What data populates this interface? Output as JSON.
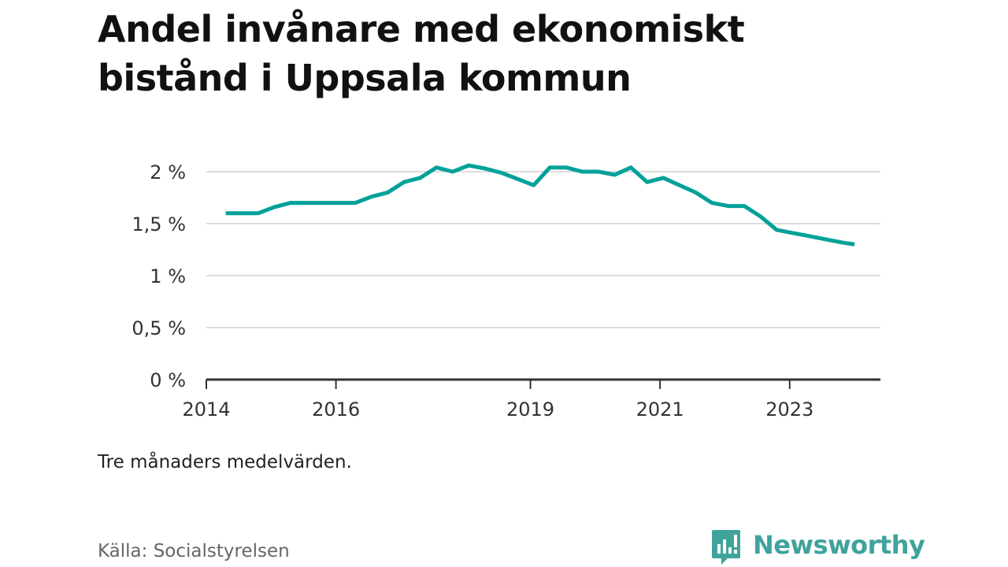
{
  "title": "Andel invånare med ekonomiskt bistånd i Uppsala kommun",
  "note": "Tre månaders medelvärden.",
  "source": "Källa: Socialstyrelsen",
  "brand": {
    "name": "Newsworthy",
    "color": "#3fa39c",
    "icon": "newsworthy-logo-icon"
  },
  "chart_data": {
    "type": "line",
    "title": "Andel invånare med ekonomiskt bistånd i Uppsala kommun",
    "xlabel": "",
    "ylabel": "",
    "color": "#00a199",
    "grid": true,
    "xlim": [
      2014.0,
      2024.4
    ],
    "ylim": [
      0,
      2
    ],
    "xticks": [
      {
        "value": 2014,
        "label": "2014"
      },
      {
        "value": 2016,
        "label": "2016"
      },
      {
        "value": 2019,
        "label": "2019"
      },
      {
        "value": 2021,
        "label": "2021"
      },
      {
        "value": 2023,
        "label": "2023"
      }
    ],
    "yticks": [
      {
        "value": 0,
        "label": "0 %"
      },
      {
        "value": 0.5,
        "label": "0,5 %"
      },
      {
        "value": 1,
        "label": "1 %"
      },
      {
        "value": 1.5,
        "label": "1,5 %"
      },
      {
        "value": 2,
        "label": "2 %"
      }
    ],
    "series": [
      {
        "x": [
          2014.3,
          2014.55,
          2014.8,
          2015.05,
          2015.3,
          2015.55,
          2015.8,
          2016.05,
          2016.3,
          2016.55,
          2016.8,
          2017.05,
          2017.3,
          2017.55,
          2017.8,
          2018.05,
          2018.3,
          2018.55,
          2018.8,
          2019.05,
          2019.3,
          2019.55,
          2019.8,
          2020.05,
          2020.3,
          2020.55,
          2020.8,
          2021.05,
          2021.3,
          2021.55,
          2021.8,
          2022.05,
          2022.3,
          2022.55,
          2022.8,
          2023.05,
          2023.3,
          2023.55,
          2023.8,
          2024.0
        ],
        "values": [
          1.6,
          1.6,
          1.6,
          1.66,
          1.7,
          1.7,
          1.7,
          1.7,
          1.7,
          1.76,
          1.8,
          1.9,
          1.94,
          2.04,
          2.0,
          2.06,
          2.03,
          1.99,
          1.93,
          1.87,
          2.04,
          2.04,
          2.0,
          2.0,
          1.97,
          2.04,
          1.9,
          1.94,
          1.87,
          1.8,
          1.7,
          1.67,
          1.67,
          1.57,
          1.44,
          1.41,
          1.38,
          1.35,
          1.32,
          1.3
        ]
      }
    ]
  }
}
